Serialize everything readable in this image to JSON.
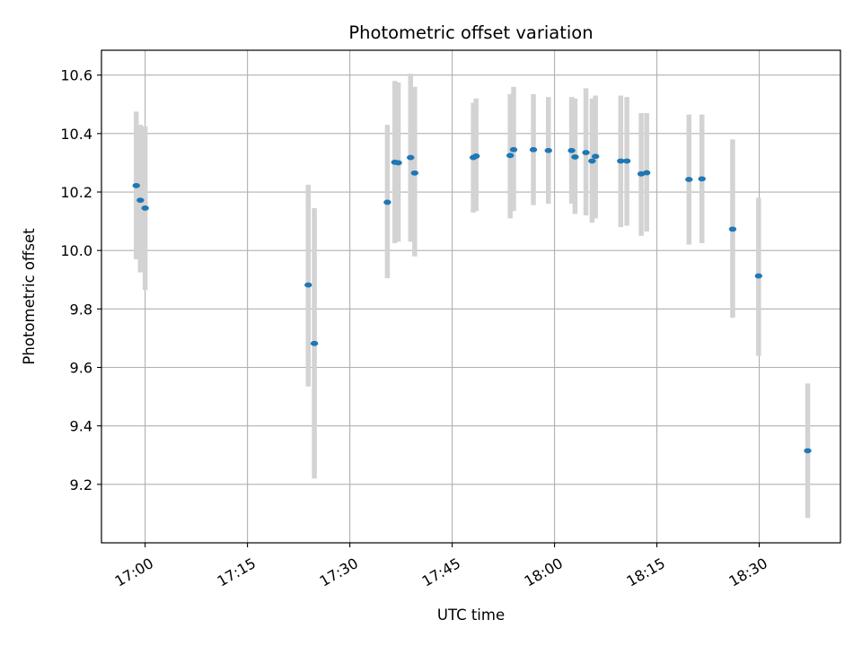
{
  "chart_data": {
    "type": "scatter",
    "title": "Photometric offset variation",
    "xlabel": "UTC time",
    "ylabel": "Photometric offset",
    "x_is_time": true,
    "xlim": [
      "16:53.6",
      "18:41.9"
    ],
    "ylim": [
      9.0,
      10.685
    ],
    "grid": true,
    "x_ticks": [
      "17:00",
      "17:15",
      "17:30",
      "17:45",
      "18:00",
      "18:15",
      "18:30"
    ],
    "y_ticks": [
      9.2,
      9.4,
      9.6,
      9.8,
      10.0,
      10.2,
      10.4,
      10.6
    ],
    "marker_color": "#1f77b4",
    "errorbar_color": "#d3d3d3",
    "points": [
      {
        "x": "16:58.7",
        "y": 10.222,
        "ylow": 9.97,
        "yhigh": 10.475
      },
      {
        "x": "16:59.3",
        "y": 10.172,
        "ylow": 9.925,
        "yhigh": 10.43
      },
      {
        "x": "17:00.0",
        "y": 10.145,
        "ylow": 9.865,
        "yhigh": 10.425
      },
      {
        "x": "17:23.9",
        "y": 9.882,
        "ylow": 9.535,
        "yhigh": 10.225
      },
      {
        "x": "17:24.8",
        "y": 9.682,
        "ylow": 9.22,
        "yhigh": 10.145
      },
      {
        "x": "17:35.5",
        "y": 10.165,
        "ylow": 9.905,
        "yhigh": 10.43
      },
      {
        "x": "17:36.6",
        "y": 10.302,
        "ylow": 10.025,
        "yhigh": 10.58
      },
      {
        "x": "17:37.1",
        "y": 10.3,
        "ylow": 10.03,
        "yhigh": 10.575
      },
      {
        "x": "17:38.9",
        "y": 10.318,
        "ylow": 10.03,
        "yhigh": 10.605
      },
      {
        "x": "17:39.5",
        "y": 10.265,
        "ylow": 9.98,
        "yhigh": 10.56
      },
      {
        "x": "17:48.1",
        "y": 10.318,
        "ylow": 10.13,
        "yhigh": 10.505
      },
      {
        "x": "17:48.5",
        "y": 10.323,
        "ylow": 10.135,
        "yhigh": 10.52
      },
      {
        "x": "17:53.5",
        "y": 10.325,
        "ylow": 10.11,
        "yhigh": 10.535
      },
      {
        "x": "17:54.0",
        "y": 10.345,
        "ylow": 10.135,
        "yhigh": 10.56
      },
      {
        "x": "17:56.9",
        "y": 10.345,
        "ylow": 10.155,
        "yhigh": 10.535
      },
      {
        "x": "17:59.1",
        "y": 10.342,
        "ylow": 10.16,
        "yhigh": 10.525
      },
      {
        "x": "18:02.5",
        "y": 10.342,
        "ylow": 10.16,
        "yhigh": 10.525
      },
      {
        "x": "18:03.0",
        "y": 10.32,
        "ylow": 10.125,
        "yhigh": 10.52
      },
      {
        "x": "18:04.6",
        "y": 10.335,
        "ylow": 10.12,
        "yhigh": 10.555
      },
      {
        "x": "18:05.5",
        "y": 10.306,
        "ylow": 10.095,
        "yhigh": 10.52
      },
      {
        "x": "18:06.0",
        "y": 10.322,
        "ylow": 10.11,
        "yhigh": 10.53
      },
      {
        "x": "18:09.7",
        "y": 10.306,
        "ylow": 10.08,
        "yhigh": 10.53
      },
      {
        "x": "18:10.6",
        "y": 10.306,
        "ylow": 10.085,
        "yhigh": 10.525
      },
      {
        "x": "18:12.7",
        "y": 10.262,
        "ylow": 10.05,
        "yhigh": 10.47
      },
      {
        "x": "18:13.5",
        "y": 10.266,
        "ylow": 10.065,
        "yhigh": 10.47
      },
      {
        "x": "18:19.7",
        "y": 10.243,
        "ylow": 10.02,
        "yhigh": 10.465
      },
      {
        "x": "18:21.6",
        "y": 10.245,
        "ylow": 10.025,
        "yhigh": 10.465
      },
      {
        "x": "18:26.1",
        "y": 10.073,
        "ylow": 9.77,
        "yhigh": 10.38
      },
      {
        "x": "18:29.9",
        "y": 9.913,
        "ylow": 9.64,
        "yhigh": 10.18
      },
      {
        "x": "18:37.1",
        "y": 9.315,
        "ylow": 9.085,
        "yhigh": 9.545
      }
    ]
  }
}
